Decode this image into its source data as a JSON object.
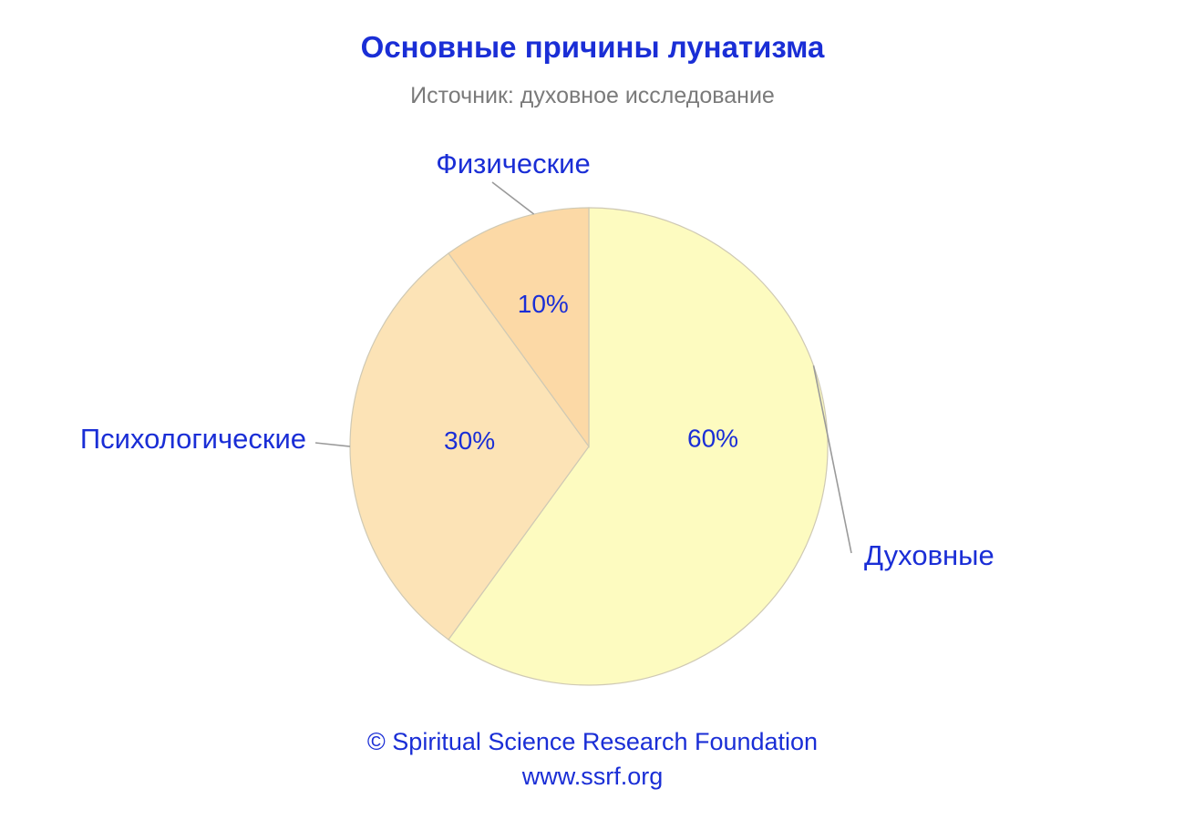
{
  "colors": {
    "title": "#1a2ed6",
    "subtitle": "#7a7a7a",
    "text": "#1a2ed6",
    "slice_stroke": "#cfc9b4",
    "leader_line": "#9a9a9a"
  },
  "chart_data": {
    "type": "pie",
    "title": "Основные причины лунатизма",
    "subtitle": "Источник: духовное исследование",
    "slices": [
      {
        "label": "Духовные",
        "value": 60,
        "value_label": "60%",
        "color": "#fdfbc0"
      },
      {
        "label": "Психологические",
        "value": 30,
        "value_label": "30%",
        "color": "#fce3b6"
      },
      {
        "label": "Физические",
        "value": 10,
        "value_label": "10%",
        "color": "#fcd9a6"
      }
    ]
  },
  "footer": {
    "copyright": "© Spiritual Science Research Foundation",
    "url": "www.ssrf.org"
  }
}
